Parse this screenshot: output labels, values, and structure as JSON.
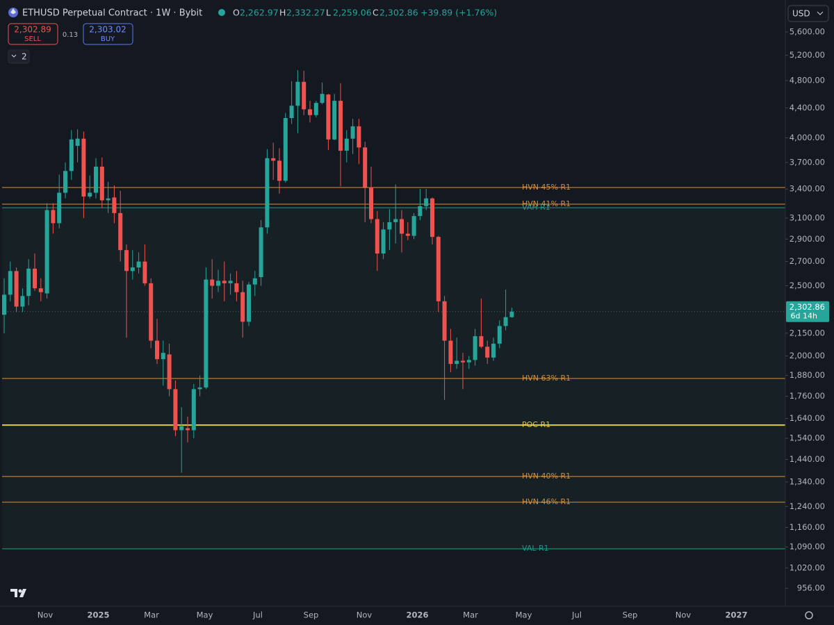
{
  "header": {
    "title": "ETHUSD Perpetual Contract · 1W · Bybit",
    "ohlc": [
      {
        "key": "O",
        "value": "2,262.97"
      },
      {
        "key": "H",
        "value": "2,332.27"
      },
      {
        "key": "L",
        "value": "2,259.06"
      },
      {
        "key": "C",
        "value": "2,302.86"
      }
    ],
    "change": "+39.89 (+1.76%)",
    "sell_price": "2,302.89",
    "sell_label": "SELL",
    "spread": "0.13",
    "buy_price": "2,303.02",
    "buy_label": "BUY",
    "indicator_count": "2",
    "currency": "USD",
    "last_price_label": "2,302.86",
    "countdown": "6d 14h"
  },
  "chart_data": {
    "type": "candlestick",
    "log_scale": true,
    "up_color": "#26a69a",
    "down_color": "#ef5350",
    "ylim": [
      903,
      6199
    ],
    "yticks": [
      {
        "value": 5600,
        "label": "5,600.00"
      },
      {
        "value": 5200,
        "label": "5,200.00"
      },
      {
        "value": 4800,
        "label": "4,800.00"
      },
      {
        "value": 4400,
        "label": "4,400.00"
      },
      {
        "value": 4000,
        "label": "4,000.00"
      },
      {
        "value": 3700,
        "label": "3,700.00"
      },
      {
        "value": 3400,
        "label": "3,400.00"
      },
      {
        "value": 3100,
        "label": "3,100.00"
      },
      {
        "value": 2900,
        "label": "2,900.00"
      },
      {
        "value": 2700,
        "label": "2,700.00"
      },
      {
        "value": 2500,
        "label": "2,500.00"
      },
      {
        "value": 2150,
        "label": "2,150.00"
      },
      {
        "value": 2000,
        "label": "2,000.00"
      },
      {
        "value": 1880,
        "label": "1,880.00"
      },
      {
        "value": 1760,
        "label": "1,760.00"
      },
      {
        "value": 1640,
        "label": "1,640.00"
      },
      {
        "value": 1540,
        "label": "1,540.00"
      },
      {
        "value": 1440,
        "label": "1,440.00"
      },
      {
        "value": 1340,
        "label": "1,340.00"
      },
      {
        "value": 1240,
        "label": "1,240.00"
      },
      {
        "value": 1160,
        "label": "1,160.00"
      },
      {
        "value": 1090,
        "label": "1,090.00"
      },
      {
        "value": 1020,
        "label": "1,020.00"
      },
      {
        "value": 956,
        "label": "956.00"
      }
    ],
    "x_labels": [
      "Nov",
      "2025",
      "Mar",
      "May",
      "Jul",
      "Sep",
      "Nov",
      "2026",
      "Mar",
      "May",
      "Jul",
      "Sep",
      "Nov",
      "2027"
    ],
    "open": [
      2280,
      2430,
      2620,
      2340,
      2420,
      2640,
      2480,
      2440,
      3180,
      3050,
      3360,
      3600,
      3900,
      3990,
      3320,
      3360,
      3650,
      3280,
      3310,
      3150,
      2800,
      2620,
      2650,
      2700,
      2520,
      2100,
      1980,
      2010,
      1800,
      1580,
      1590,
      1580,
      1800,
      1810,
      2550,
      2500,
      2540,
      2520,
      2520,
      2450,
      2230,
      2510,
      2570,
      3010,
      3750,
      3720,
      3490,
      4260,
      4430,
      4780,
      4380,
      4300,
      4470,
      4590,
      3980,
      4500,
      3840,
      3990,
      4150,
      3880,
      3420,
      3090,
      2770,
      2990,
      3060,
      3090,
      2950,
      2930,
      3120,
      3220,
      3300,
      2920,
      2380,
      2100,
      1950,
      1970,
      1960,
      1975,
      2130,
      2060,
      1990,
      2080,
      2200,
      2262.97
    ],
    "high": [
      2560,
      2700,
      2650,
      2480,
      2720,
      2770,
      2560,
      3250,
      3250,
      3560,
      3700,
      4100,
      4110,
      4080,
      3550,
      3750,
      3760,
      3480,
      3440,
      3380,
      2850,
      2800,
      2780,
      2850,
      2560,
      2250,
      2100,
      2080,
      1850,
      1700,
      1650,
      1830,
      1880,
      2650,
      2720,
      2630,
      2700,
      2600,
      2620,
      2540,
      2530,
      2620,
      3080,
      3860,
      3940,
      3870,
      4330,
      4790,
      4960,
      4950,
      4500,
      4500,
      4770,
      4600,
      4600,
      4760,
      4100,
      4250,
      4250,
      3950,
      3650,
      3170,
      3060,
      3190,
      3450,
      3180,
      3060,
      3150,
      3400,
      3400,
      3310,
      2930,
      2420,
      2180,
      2120,
      2020,
      2000,
      2180,
      2400,
      2100,
      2120,
      2240,
      2470,
      2332.27
    ],
    "low": [
      2150,
      2380,
      2300,
      2300,
      2350,
      2460,
      2380,
      2400,
      2950,
      3000,
      3300,
      3500,
      3700,
      3100,
      3300,
      3300,
      3200,
      3150,
      3050,
      2700,
      2120,
      2550,
      2600,
      2500,
      2050,
      1950,
      1820,
      1760,
      1550,
      1380,
      1520,
      1540,
      1760,
      1800,
      2400,
      2450,
      2380,
      2430,
      2380,
      2120,
      2200,
      2420,
      2500,
      2950,
      3500,
      3350,
      3470,
      4180,
      4060,
      4300,
      4200,
      4270,
      4450,
      3850,
      3970,
      3430,
      3700,
      3800,
      3680,
      3060,
      3050,
      2620,
      2720,
      2800,
      2860,
      2780,
      2890,
      2900,
      3080,
      3180,
      2850,
      2300,
      1740,
      1900,
      1920,
      1800,
      1920,
      1940,
      2050,
      1950,
      1970,
      2050,
      2170,
      2259.06
    ],
    "close": [
      2430,
      2620,
      2340,
      2420,
      2640,
      2480,
      2450,
      3180,
      3050,
      3360,
      3600,
      3980,
      3990,
      3320,
      3360,
      3650,
      3280,
      3300,
      3150,
      2800,
      2620,
      2650,
      2700,
      2520,
      2100,
      1980,
      2020,
      1800,
      1580,
      1600,
      1580,
      1800,
      1810,
      2550,
      2500,
      2540,
      2520,
      2540,
      2450,
      2230,
      2510,
      2560,
      3010,
      3750,
      3720,
      3490,
      4260,
      4430,
      4780,
      4380,
      4300,
      4470,
      4600,
      3980,
      4500,
      3840,
      3990,
      4150,
      3880,
      3420,
      3090,
      2770,
      2990,
      3060,
      3090,
      2950,
      2930,
      3120,
      3220,
      3300,
      2920,
      2380,
      2100,
      1950,
      1970,
      1960,
      1975,
      2130,
      2060,
      1990,
      2080,
      2200,
      2263,
      2302.86
    ],
    "levels": [
      {
        "name": "HVN 45% R1",
        "value": 3416,
        "color": "#f0a040"
      },
      {
        "name": "HVN 41% R1",
        "value": 3240,
        "color": "#f0a040"
      },
      {
        "name": "VAH R1",
        "value": 3204,
        "color": "#26a69a"
      },
      {
        "name": "HVN 63% R1",
        "value": 1862,
        "color": "#f0a040"
      },
      {
        "name": "POC R1",
        "value": 1606,
        "color": "#f5e04a"
      },
      {
        "name": "HVN 40% R1",
        "value": 1364,
        "color": "#f0a040"
      },
      {
        "name": "HVN 46% R1",
        "value": 1257,
        "color": "#f0a040"
      },
      {
        "name": "VAL R1",
        "value": 1084,
        "color": "#26a69a"
      }
    ],
    "value_area_color": "#172024"
  }
}
